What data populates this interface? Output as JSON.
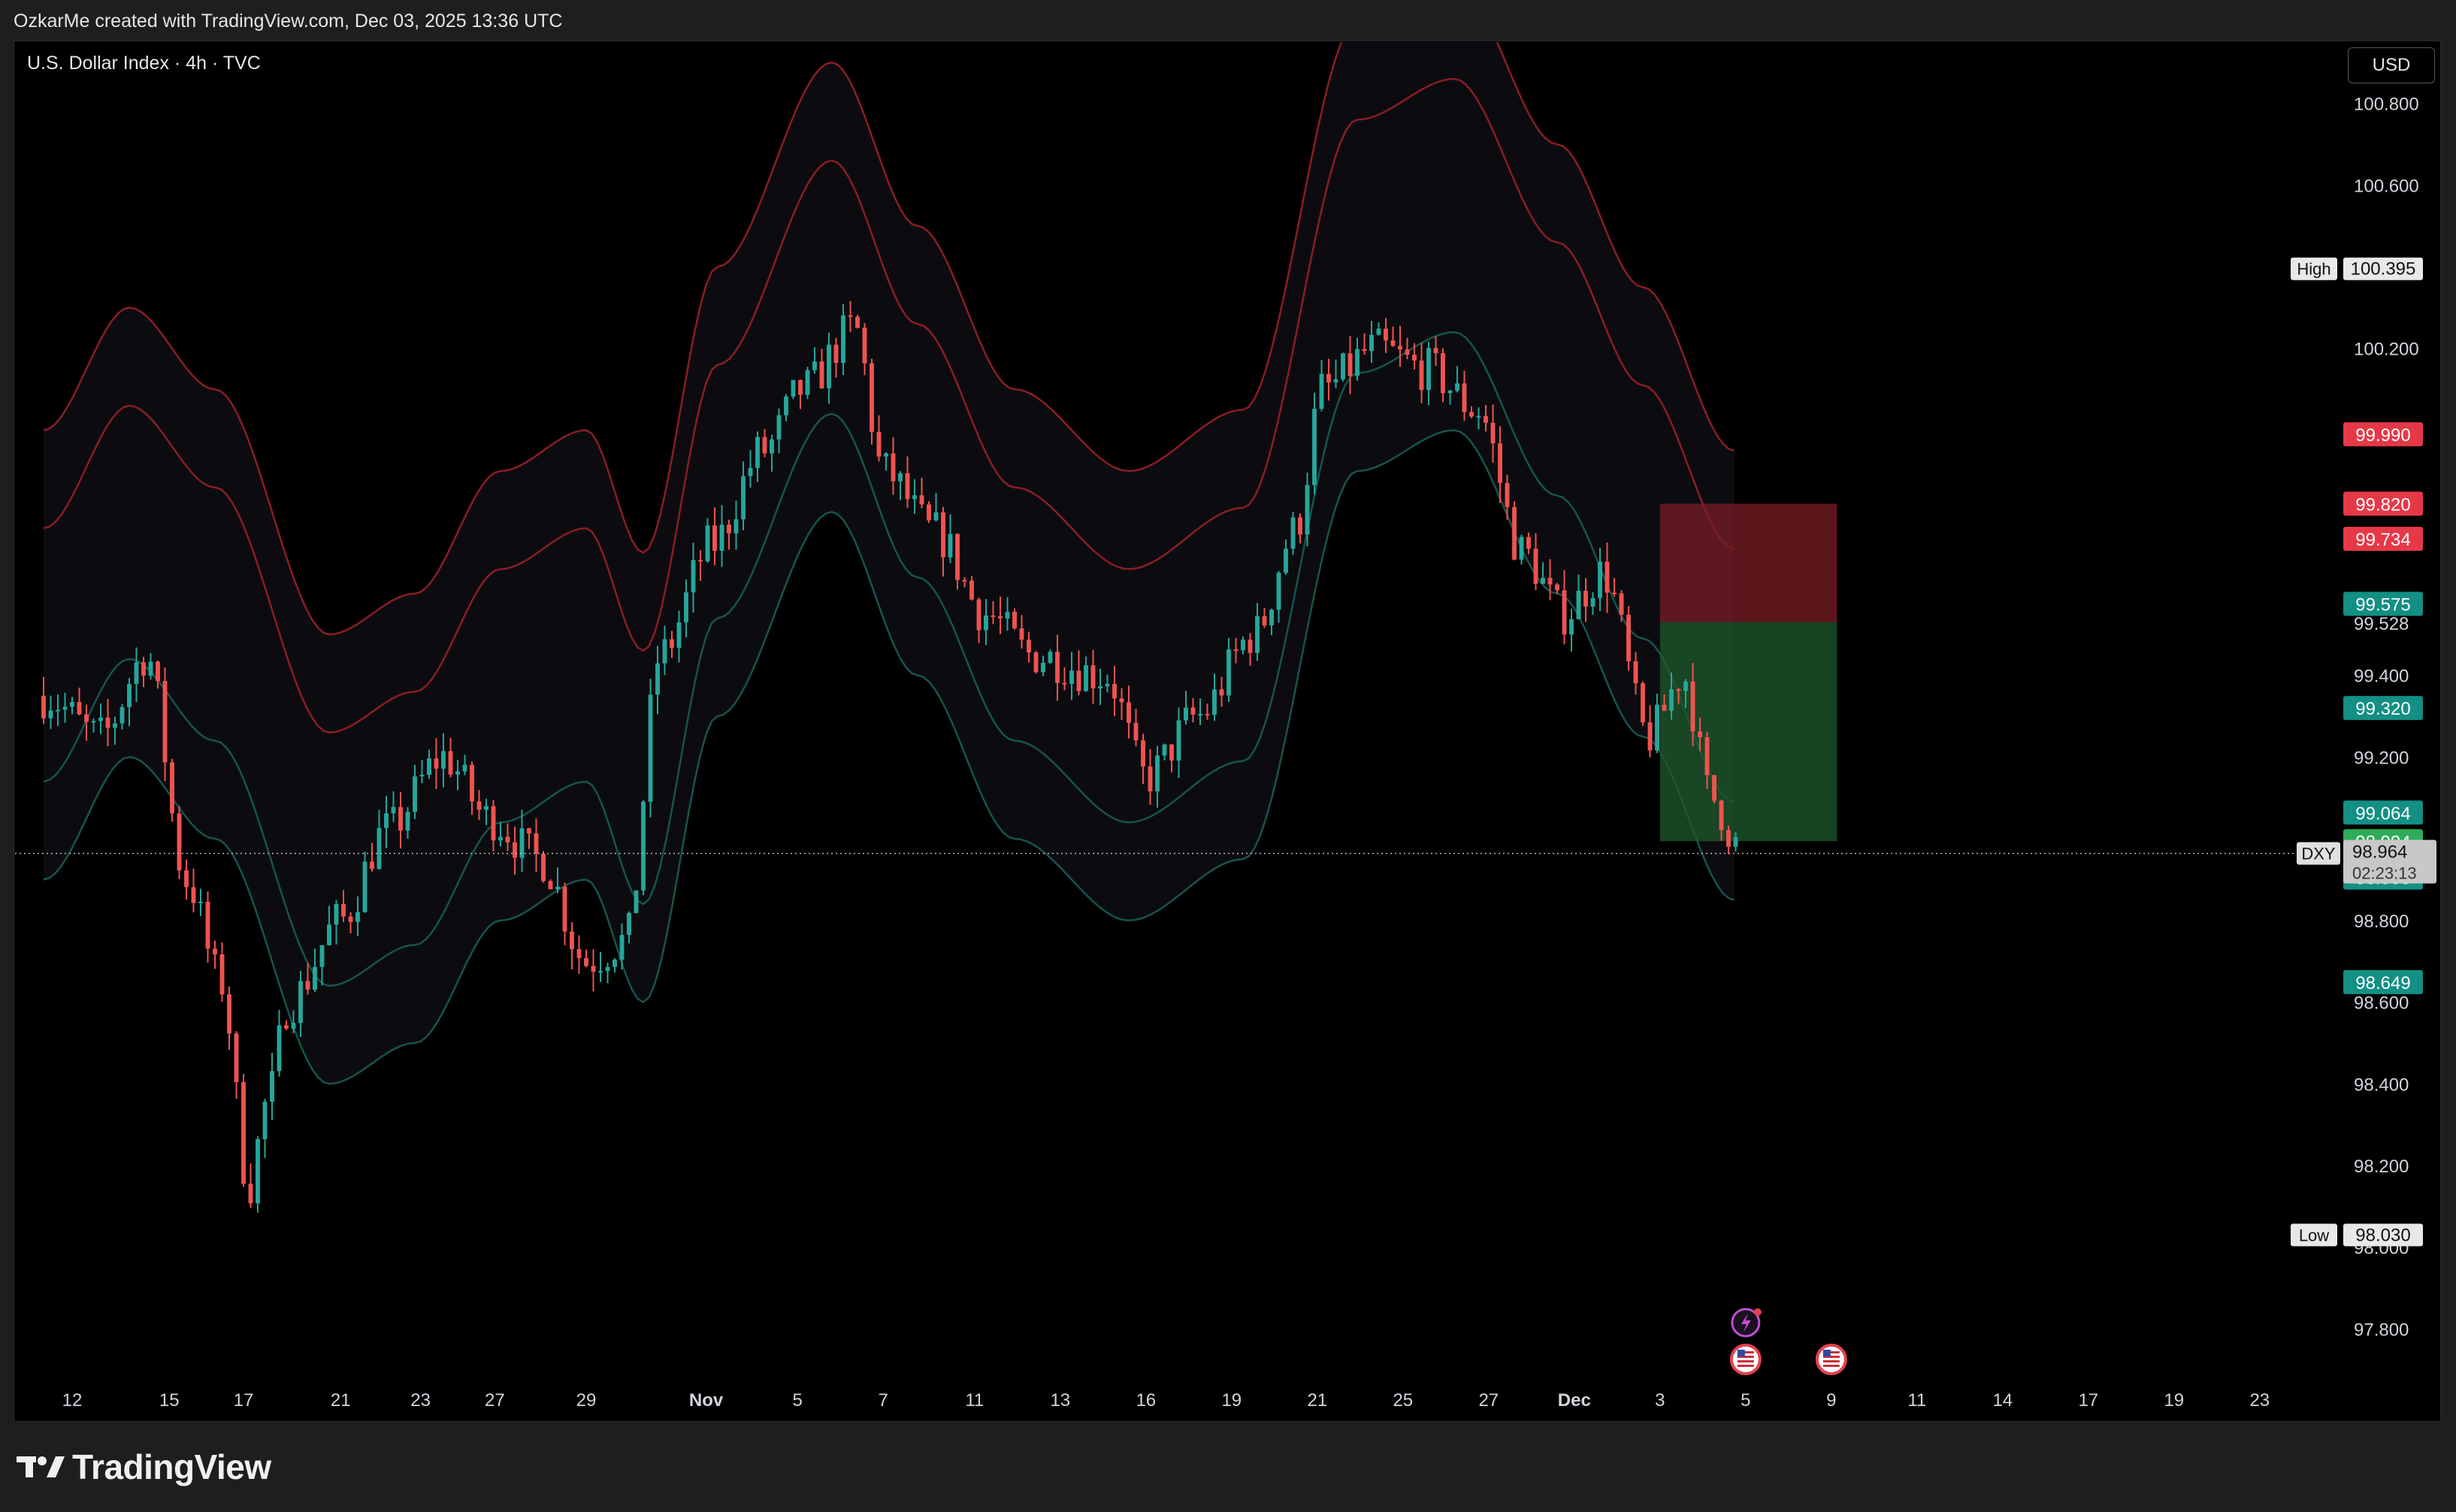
{
  "header": {
    "credit": "OzkarMe created with TradingView.com, Dec 03, 2025 13:36 UTC",
    "symbol_title": "U.S. Dollar Index · 4h · TVC",
    "currency": "USD"
  },
  "footer": {
    "logo_text": "TradingView"
  },
  "colors": {
    "background": "#000000",
    "candle_up": "#26a69a",
    "candle_down": "#ef5350",
    "band_upper": "#8b1d25",
    "band_lower": "#17544d",
    "stop_zone": "#7a1e26",
    "target_zone": "#1d5a2c"
  },
  "chart_data": {
    "type": "candlestick",
    "symbol": "DXY",
    "timeframe": "4h",
    "x_tick_labels": [
      "12",
      "15",
      "17",
      "21",
      "23",
      "27",
      "29",
      "Nov",
      "5",
      "7",
      "11",
      "13",
      "16",
      "19",
      "21",
      "25",
      "27",
      "Dec",
      "3",
      "5",
      "9",
      "11",
      "14",
      "17",
      "19",
      "23"
    ],
    "y_ticks": [
      "100.800",
      "100.600",
      "100.200",
      "99.528",
      "99.400",
      "99.200",
      "98.800",
      "98.600",
      "98.400",
      "98.200",
      "98.000",
      "97.800"
    ],
    "ylim": [
      97.65,
      100.95
    ],
    "high_label": {
      "text": "High",
      "value": "100.395"
    },
    "low_label": {
      "text": "Low",
      "value": "98.030"
    },
    "price_labels": [
      {
        "value": "99.990",
        "kind": "red"
      },
      {
        "value": "99.820",
        "kind": "red"
      },
      {
        "value": "99.734",
        "kind": "red"
      },
      {
        "value": "99.575",
        "kind": "teal"
      },
      {
        "value": "99.320",
        "kind": "teal"
      },
      {
        "value": "99.064",
        "kind": "teal"
      },
      {
        "value": "98.994",
        "kind": "green"
      },
      {
        "value": "98.905",
        "kind": "teal"
      },
      {
        "value": "98.649",
        "kind": "teal"
      }
    ],
    "current": {
      "symbol": "DXY",
      "price": "98.964",
      "countdown": "02:23:13"
    },
    "position": {
      "stop": 99.82,
      "entry": 99.53,
      "target": 98.994,
      "x_start": 28.3,
      "x_end": 31.4
    },
    "band_anchors": [
      [
        0.0,
        99.45
      ],
      [
        1.5,
        99.75
      ],
      [
        3.0,
        99.55
      ],
      [
        5.0,
        98.95
      ],
      [
        6.5,
        99.05
      ],
      [
        8.0,
        99.35
      ],
      [
        9.5,
        99.45
      ],
      [
        10.5,
        99.15
      ],
      [
        11.8,
        99.85
      ],
      [
        13.8,
        100.35
      ],
      [
        15.3,
        99.95
      ],
      [
        17.0,
        99.55
      ],
      [
        19.0,
        99.35
      ],
      [
        21.0,
        99.5
      ],
      [
        23.0,
        100.45
      ],
      [
        24.7,
        100.55
      ],
      [
        26.5,
        100.15
      ],
      [
        28.0,
        99.8
      ],
      [
        29.6,
        99.4
      ]
    ],
    "band_offsets": [
      0.55,
      0.31,
      -0.31,
      -0.55
    ],
    "candle_anchors": [
      [
        0.0,
        99.35
      ],
      [
        1.0,
        99.25
      ],
      [
        1.8,
        99.45
      ],
      [
        2.5,
        98.9
      ],
      [
        3.1,
        98.65
      ],
      [
        3.6,
        98.15
      ],
      [
        3.9,
        98.35
      ],
      [
        4.3,
        98.6
      ],
      [
        5.2,
        98.8
      ],
      [
        6.0,
        99.02
      ],
      [
        7.0,
        99.2
      ],
      [
        7.8,
        99.05
      ],
      [
        8.7,
        98.95
      ],
      [
        9.5,
        98.7
      ],
      [
        10.2,
        98.75
      ],
      [
        10.8,
        99.45
      ],
      [
        11.7,
        99.72
      ],
      [
        12.6,
        99.95
      ],
      [
        13.3,
        100.1
      ],
      [
        14.2,
        100.25
      ],
      [
        14.7,
        99.9
      ],
      [
        15.6,
        99.75
      ],
      [
        16.5,
        99.55
      ],
      [
        17.3,
        99.45
      ],
      [
        18.6,
        99.4
      ],
      [
        19.3,
        99.15
      ],
      [
        20.2,
        99.3
      ],
      [
        21.2,
        99.5
      ],
      [
        21.9,
        99.75
      ],
      [
        22.4,
        100.1
      ],
      [
        23.3,
        100.2
      ],
      [
        24.2,
        100.15
      ],
      [
        25.1,
        100.05
      ],
      [
        25.9,
        99.7
      ],
      [
        26.6,
        99.55
      ],
      [
        27.3,
        99.65
      ],
      [
        28.1,
        99.25
      ],
      [
        28.7,
        99.4
      ],
      [
        29.2,
        99.1
      ],
      [
        29.7,
        98.98
      ]
    ],
    "current_x": 29.7,
    "x_domain": [
      -0.5,
      39.5
    ],
    "tick_x": [
      0.5,
      2.2,
      3.5,
      5.2,
      6.6,
      7.9,
      9.5,
      11.6,
      13.2,
      14.7,
      16.3,
      17.8,
      19.3,
      20.8,
      22.3,
      23.8,
      25.3,
      26.8,
      28.3,
      29.8,
      31.3,
      32.8,
      34.3,
      35.8,
      37.3,
      38.8
    ]
  }
}
